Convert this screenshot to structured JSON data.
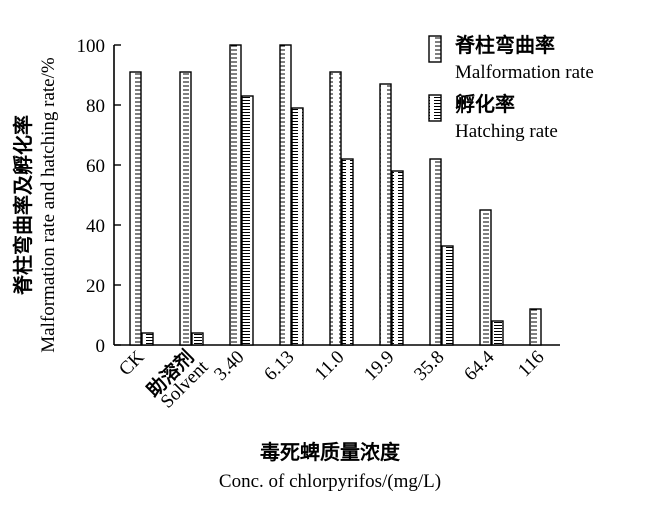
{
  "chart_data": {
    "type": "bar",
    "ylabel_cn": "脊柱弯曲率及孵化率",
    "ylabel_en": "Malformation rate and hatching rate/%",
    "xlabel_cn": "毒死蜱质量浓度",
    "xlabel_en": "Conc. of chlorpyrifos/(mg/L)",
    "ylim": [
      0,
      100
    ],
    "yticks": [
      "0",
      "20",
      "40",
      "60",
      "80",
      "100"
    ],
    "categories": [
      {
        "line1": "CK",
        "line2": ""
      },
      {
        "line1": "助溶剂",
        "line2": "Solvent"
      },
      {
        "line1": "3.40",
        "line2": ""
      },
      {
        "line1": "6.13",
        "line2": ""
      },
      {
        "line1": "11.0",
        "line2": ""
      },
      {
        "line1": "19.9",
        "line2": ""
      },
      {
        "line1": "35.8",
        "line2": ""
      },
      {
        "line1": "64.4",
        "line2": ""
      },
      {
        "line1": "116",
        "line2": ""
      }
    ],
    "series": [
      {
        "name_cn": "脊柱弯曲率",
        "name_en": "Malformation rate",
        "values": [
          91,
          91,
          100,
          100,
          91,
          87,
          62,
          45,
          12
        ]
      },
      {
        "name_cn": "孵化率",
        "name_en": "Hatching rate",
        "values": [
          4,
          4,
          83,
          79,
          62,
          58,
          33,
          8,
          null
        ]
      }
    ],
    "legend_position": "top-right",
    "grid": false
  }
}
